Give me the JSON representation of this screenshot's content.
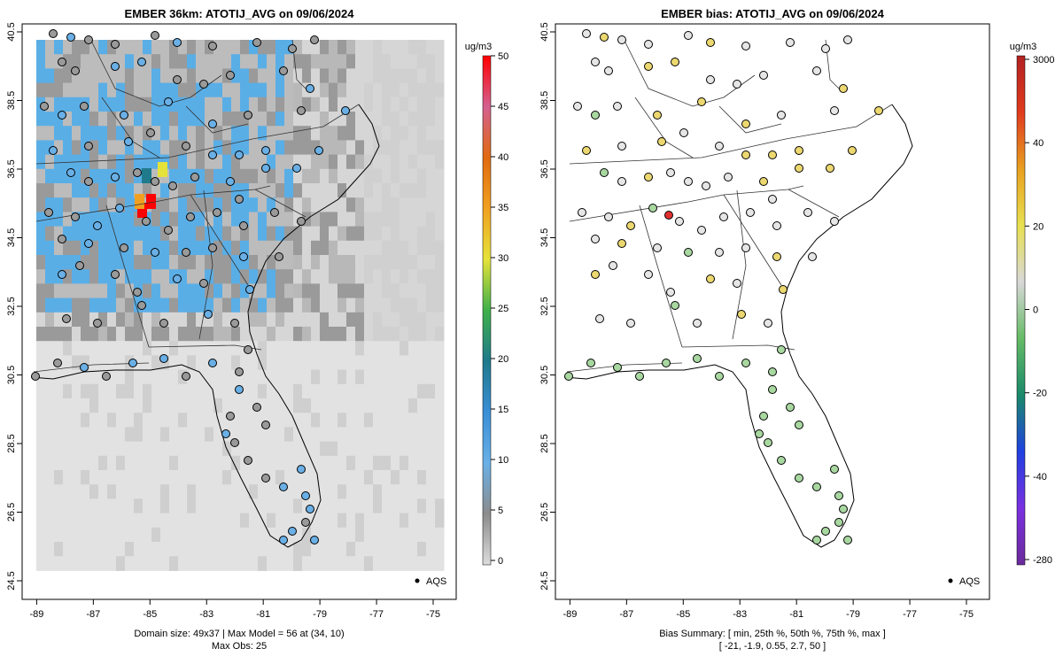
{
  "left_panel": {
    "title": "EMBER 36km: ATOTIJ_AVG on 09/06/2024",
    "footer_line1": "Domain size: 49x37 | Max Model = 56 at (34, 10)",
    "footer_line2": "Max Obs: 25",
    "legend_label": "AQS",
    "colorbar": {
      "unit": "ug/m3",
      "ticks": [
        "0",
        "5",
        "10",
        "15",
        "20",
        "25",
        "30",
        "35",
        "40",
        "45",
        "50"
      ],
      "stops": [
        "#dcdcdc",
        "#8c8c8c",
        "#6ab0e6",
        "#3a8fd6",
        "#1f7a8c",
        "#3fb04a",
        "#e5e23a",
        "#f0a020",
        "#e06a10",
        "#d46090",
        "#ff0000"
      ]
    }
  },
  "right_panel": {
    "title": "EMBER bias: ATOTIJ_AVG on 09/06/2024",
    "footer_line1": "Bias Summary: [ min, 25th %, 50th %, 75th %, max ]",
    "footer_line2": "[ -21,   -1.9,   0.55,   2.7,   50 ]",
    "legend_label": "AQS",
    "colorbar": {
      "unit": "ug/m3",
      "ticks": [
        "3000",
        "40",
        "20",
        "0",
        "-20",
        "-40",
        "-280"
      ],
      "stops": [
        "#b22222",
        "#e03a1e",
        "#e8a020",
        "#e8e050",
        "#d8d8d8",
        "#66bb66",
        "#1a8a6a",
        "#2040e0",
        "#7a30e0",
        "#6a2a9a"
      ]
    }
  },
  "map_axes": {
    "x_ticks": [
      "-89",
      "-87",
      "-85",
      "-83",
      "-81",
      "-79",
      "-77",
      "-75"
    ],
    "y_ticks": [
      "24.5",
      "26.5",
      "28.5",
      "30.5",
      "32.5",
      "34.5",
      "36.5",
      "38.5",
      "40.5"
    ],
    "lon_range": [
      -89.2,
      -74.5
    ],
    "lat_range": [
      24.2,
      40.85
    ]
  },
  "colors": {
    "model_low": "#d6d6d6",
    "model_mid": "#9a9a9a",
    "model_high": "#5aaee6",
    "model_max": "#ff0000",
    "bias_negative": "#a8d8a0",
    "bias_positive": "#ecd870",
    "obs_gray": "#9a9a9a",
    "obs_blue": "#6ab0e6"
  }
}
